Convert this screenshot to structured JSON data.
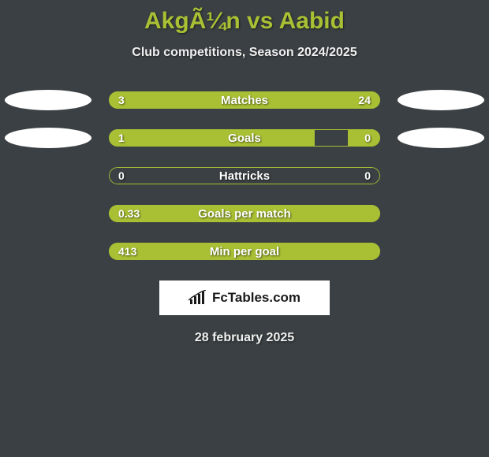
{
  "title": "AkgÃ¼n vs Aabid",
  "subtitle": "Club competitions, Season 2024/2025",
  "date": "28 february 2025",
  "brand": "FcTables.com",
  "colors": {
    "background": "#3a4043",
    "accent": "#a9c034",
    "text": "#ffffff",
    "brand_bg": "#ffffff",
    "brand_text": "#1a1a1a"
  },
  "bars": [
    {
      "label": "Matches",
      "left_val": "3",
      "right_val": "24",
      "left_pct": 18,
      "right_pct": 82,
      "show_logos": true
    },
    {
      "label": "Goals",
      "left_val": "1",
      "right_val": "0",
      "left_pct": 76,
      "right_pct": 12,
      "show_logos": true
    },
    {
      "label": "Hattricks",
      "left_val": "0",
      "right_val": "0",
      "left_pct": 0,
      "right_pct": 0,
      "show_logos": false
    },
    {
      "label": "Goals per match",
      "left_val": "0.33",
      "right_val": "",
      "left_pct": 100,
      "right_pct": 0,
      "show_logos": false
    },
    {
      "label": "Min per goal",
      "left_val": "413",
      "right_val": "",
      "left_pct": 100,
      "right_pct": 0,
      "show_logos": false
    }
  ]
}
